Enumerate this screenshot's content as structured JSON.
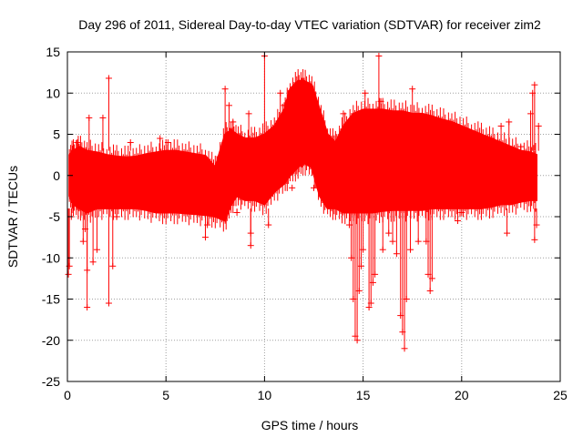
{
  "chart_data": {
    "type": "scatter",
    "title": "Day 296 of 2011, Sidereal Day-to-day VTEC variation (SDTVAR) for receiver zim2",
    "xlabel": "GPS time / hours",
    "ylabel": "SDTVAR / TECUs",
    "xlim": [
      0,
      25
    ],
    "ylim": [
      -25,
      15
    ],
    "xticks": [
      0,
      5,
      10,
      15,
      20,
      25
    ],
    "yticks": [
      -25,
      -20,
      -15,
      -10,
      -5,
      0,
      5,
      10,
      15
    ],
    "grid": true,
    "marker": "+",
    "series_color": "#ff0000",
    "envelope": {
      "x": [
        0.1,
        0.3,
        0.6,
        1.0,
        1.5,
        2.0,
        2.5,
        3.0,
        3.5,
        4.0,
        4.5,
        5.0,
        5.5,
        6.0,
        6.5,
        7.0,
        7.5,
        8.0,
        8.3,
        8.6,
        9.0,
        9.5,
        10.0,
        10.5,
        11.0,
        11.3,
        11.7,
        12.0,
        12.4,
        12.8,
        13.2,
        13.6,
        14.0,
        14.5,
        15.0,
        15.5,
        16.0,
        16.5,
        17.0,
        17.5,
        18.0,
        18.5,
        19.0,
        19.5,
        20.0,
        20.5,
        21.0,
        21.5,
        22.0,
        22.5,
        23.0,
        23.5,
        23.8
      ],
      "upper": [
        2.5,
        3.0,
        3.5,
        3.0,
        2.8,
        2.5,
        2.3,
        2.2,
        2.3,
        2.6,
        2.8,
        3.0,
        3.0,
        2.8,
        2.6,
        2.4,
        1.0,
        5.0,
        5.5,
        5.0,
        4.5,
        4.5,
        5.0,
        6.0,
        8.0,
        10.5,
        11.5,
        11.5,
        11.0,
        8.0,
        5.0,
        4.0,
        6.0,
        7.5,
        8.0,
        8.0,
        8.0,
        7.8,
        7.8,
        7.5,
        7.5,
        7.2,
        6.8,
        6.5,
        6.0,
        5.5,
        5.0,
        4.5,
        4.0,
        3.5,
        3.0,
        2.8,
        2.5
      ],
      "lower": [
        -2.5,
        -3.5,
        -4.0,
        -4.5,
        -4.0,
        -4.0,
        -4.0,
        -4.0,
        -4.0,
        -4.2,
        -4.5,
        -4.5,
        -4.5,
        -4.6,
        -4.7,
        -4.8,
        -5.0,
        -5.5,
        -3.5,
        -2.5,
        -3.0,
        -3.0,
        -3.5,
        -2.0,
        -1.0,
        0.0,
        1.0,
        1.5,
        1.0,
        -2.5,
        -4.0,
        -4.0,
        -4.5,
        -4.5,
        -4.5,
        -4.5,
        -4.3,
        -4.2,
        -4.2,
        -4.2,
        -4.2,
        -4.0,
        -4.0,
        -4.0,
        -4.0,
        -4.0,
        -4.0,
        -3.8,
        -3.5,
        -3.5,
        -3.2,
        -3.0,
        -3.0
      ]
    },
    "spikes": [
      {
        "x": 0.05,
        "y": -12.0
      },
      {
        "x": 0.1,
        "y": -11.0
      },
      {
        "x": 0.2,
        "y": -5.0
      },
      {
        "x": 0.5,
        "y": 4.0
      },
      {
        "x": 0.8,
        "y": -8.0
      },
      {
        "x": 0.9,
        "y": -6.5
      },
      {
        "x": 1.0,
        "y": -16.0
      },
      {
        "x": 1.0,
        "y": -11.5
      },
      {
        "x": 1.1,
        "y": 7.0
      },
      {
        "x": 1.3,
        "y": -10.5
      },
      {
        "x": 1.5,
        "y": -9.0
      },
      {
        "x": 1.8,
        "y": 7.0
      },
      {
        "x": 2.1,
        "y": 11.8
      },
      {
        "x": 2.1,
        "y": -15.5
      },
      {
        "x": 2.3,
        "y": -11.0
      },
      {
        "x": 2.5,
        "y": -5.0
      },
      {
        "x": 3.2,
        "y": 4.0
      },
      {
        "x": 4.7,
        "y": 4.5
      },
      {
        "x": 5.1,
        "y": 4.0
      },
      {
        "x": 7.0,
        "y": -7.5
      },
      {
        "x": 7.1,
        "y": -6.0
      },
      {
        "x": 8.0,
        "y": 10.5
      },
      {
        "x": 8.2,
        "y": 8.5
      },
      {
        "x": 8.4,
        "y": 6.5
      },
      {
        "x": 8.6,
        "y": -4.5
      },
      {
        "x": 9.2,
        "y": 7.5
      },
      {
        "x": 9.3,
        "y": -7.0
      },
      {
        "x": 9.3,
        "y": -8.5
      },
      {
        "x": 10.0,
        "y": 14.5
      },
      {
        "x": 10.2,
        "y": -6.0
      },
      {
        "x": 10.8,
        "y": 10.0
      },
      {
        "x": 11.0,
        "y": 8.5
      },
      {
        "x": 11.1,
        "y": 5.0
      },
      {
        "x": 11.4,
        "y": -1.5
      },
      {
        "x": 11.5,
        "y": 2.0
      },
      {
        "x": 12.5,
        "y": -1.5
      },
      {
        "x": 13.5,
        "y": 4.0
      },
      {
        "x": 14.0,
        "y": 7.5
      },
      {
        "x": 14.3,
        "y": -6.0
      },
      {
        "x": 14.4,
        "y": -10.0
      },
      {
        "x": 14.5,
        "y": -15.0
      },
      {
        "x": 14.6,
        "y": -19.5
      },
      {
        "x": 14.7,
        "y": -20.0
      },
      {
        "x": 14.8,
        "y": -14.0
      },
      {
        "x": 14.9,
        "y": -11.0
      },
      {
        "x": 15.0,
        "y": -9.0
      },
      {
        "x": 15.1,
        "y": 10.0
      },
      {
        "x": 15.3,
        "y": -16.0
      },
      {
        "x": 15.4,
        "y": -15.5
      },
      {
        "x": 15.5,
        "y": -13.0
      },
      {
        "x": 15.6,
        "y": -12.0
      },
      {
        "x": 15.8,
        "y": 14.5
      },
      {
        "x": 15.9,
        "y": 9.0
      },
      {
        "x": 16.0,
        "y": -9.0
      },
      {
        "x": 16.3,
        "y": -7.0
      },
      {
        "x": 16.5,
        "y": -8.0
      },
      {
        "x": 16.7,
        "y": -9.5
      },
      {
        "x": 16.9,
        "y": -17.0
      },
      {
        "x": 17.0,
        "y": -19.0
      },
      {
        "x": 17.1,
        "y": -21.0
      },
      {
        "x": 17.2,
        "y": -15.0
      },
      {
        "x": 17.4,
        "y": -9.0
      },
      {
        "x": 17.5,
        "y": 10.5
      },
      {
        "x": 17.8,
        "y": -8.0
      },
      {
        "x": 18.2,
        "y": -8.0
      },
      {
        "x": 18.3,
        "y": -12.0
      },
      {
        "x": 18.4,
        "y": -14.0
      },
      {
        "x": 18.5,
        "y": -12.5
      },
      {
        "x": 19.8,
        "y": -5.5
      },
      {
        "x": 20.0,
        "y": -4.5
      },
      {
        "x": 21.5,
        "y": 4.5
      },
      {
        "x": 22.0,
        "y": 6.0
      },
      {
        "x": 22.3,
        "y": -7.0
      },
      {
        "x": 22.4,
        "y": 6.5
      },
      {
        "x": 23.0,
        "y": 3.5
      },
      {
        "x": 23.5,
        "y": 7.5
      },
      {
        "x": 23.6,
        "y": 10.0
      },
      {
        "x": 23.7,
        "y": 11.0
      },
      {
        "x": 23.7,
        "y": -7.8
      },
      {
        "x": 23.8,
        "y": -6.0
      },
      {
        "x": 23.9,
        "y": 6.0
      }
    ]
  }
}
